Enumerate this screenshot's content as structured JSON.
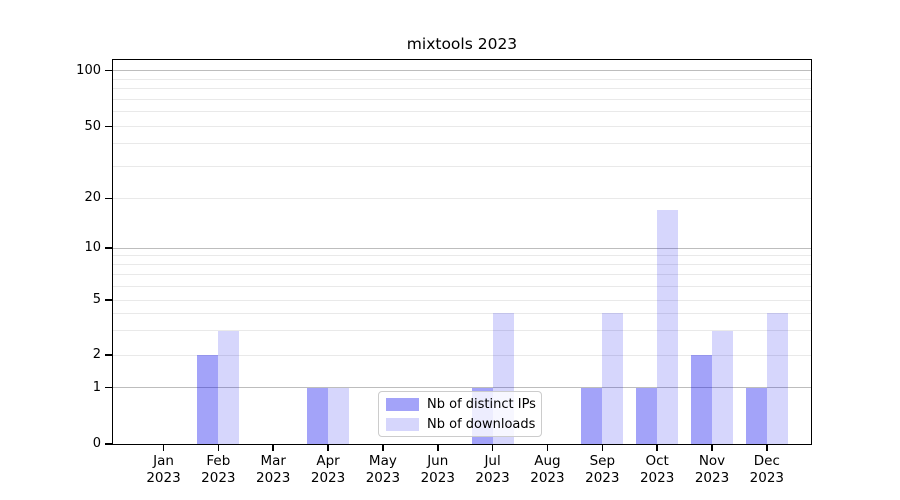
{
  "chart_data": {
    "type": "bar",
    "title": "mixtools 2023",
    "xlabel": "",
    "ylabel": "",
    "yscale": "asinh-like (log above 1, linear 0-1)",
    "yticks": [
      0,
      1,
      2,
      5,
      10,
      20,
      50,
      100
    ],
    "ylim": [
      0,
      130
    ],
    "grid": "horizontal, minor+major",
    "categories": [
      "Jan",
      "Feb",
      "Mar",
      "Apr",
      "May",
      "Jun",
      "Jul",
      "Aug",
      "Sep",
      "Oct",
      "Nov",
      "Dec"
    ],
    "year_label": "2023",
    "series": [
      {
        "name": "Nb of distinct IPs",
        "color": "rgba(0, 0, 238, 0.36)",
        "values": [
          0,
          2,
          0,
          1,
          0,
          0,
          1,
          0,
          1,
          1,
          2,
          1
        ]
      },
      {
        "name": "Nb of downloads",
        "color": "rgba(0, 0, 238, 0.16)",
        "values": [
          0,
          3,
          0,
          1,
          0,
          0,
          4,
          0,
          4,
          17,
          3,
          4
        ]
      }
    ],
    "legend_position": "lower center"
  },
  "colors": {
    "grid_major": "#bdbdbd",
    "grid_minor": "#e9e9e9",
    "spine": "#000000",
    "legend_border": "#cccccc"
  }
}
